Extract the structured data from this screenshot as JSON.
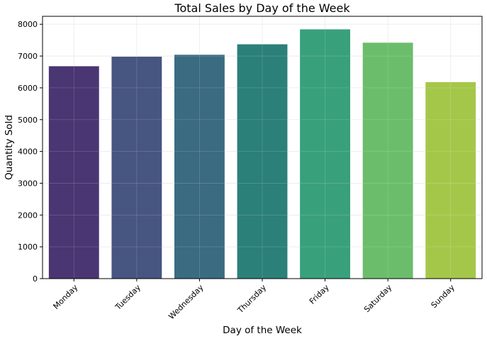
{
  "chart_data": {
    "type": "bar",
    "title": "Total Sales by Day of the Week",
    "xlabel": "Day of the Week",
    "ylabel": "Quantity Sold",
    "categories": [
      "Monday",
      "Tuesday",
      "Wednesday",
      "Thursday",
      "Friday",
      "Saturday",
      "Sunday"
    ],
    "values": [
      6680,
      6980,
      7040,
      7370,
      7840,
      7420,
      6180
    ],
    "colors": [
      "#4a3672",
      "#475581",
      "#3a6b80",
      "#2b8079",
      "#39a07c",
      "#6bbd6b",
      "#a4c74a"
    ],
    "ylim": [
      0,
      8250
    ],
    "yticks": [
      0,
      1000,
      2000,
      3000,
      4000,
      5000,
      6000,
      7000,
      8000
    ],
    "grid": true,
    "legend": "none"
  }
}
